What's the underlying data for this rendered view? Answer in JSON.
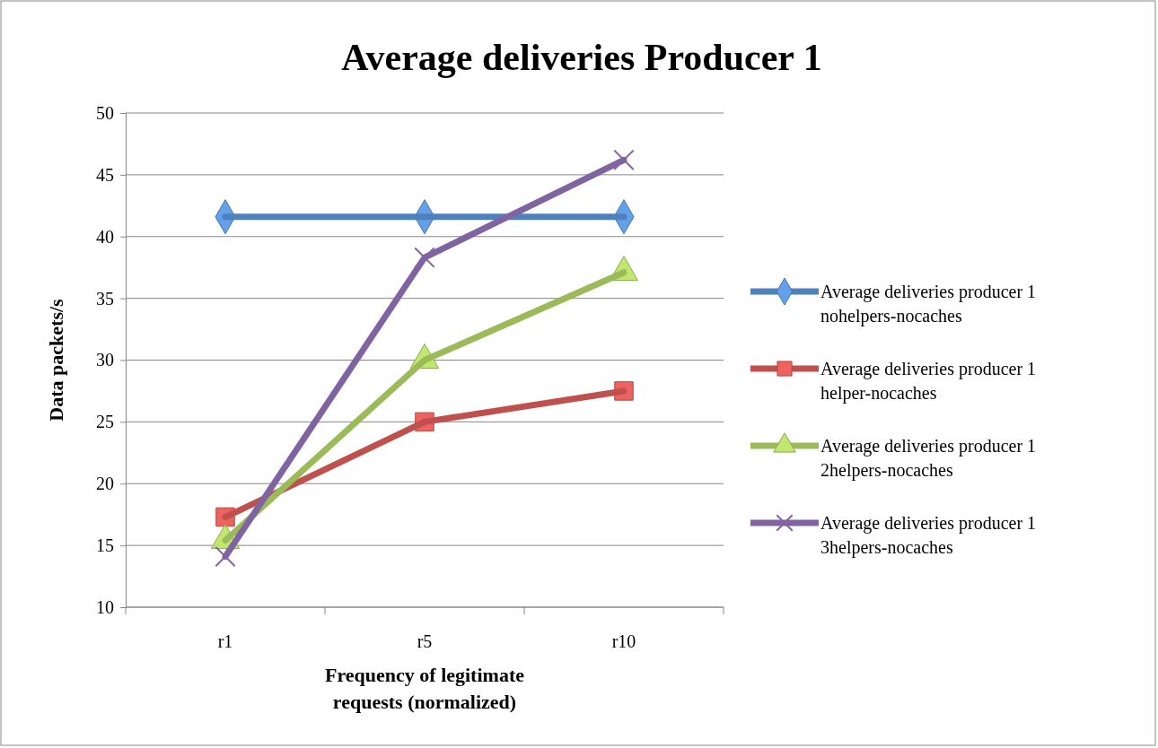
{
  "chart_data": {
    "type": "line",
    "title": "Average deliveries Producer 1",
    "xlabel": "Frequency of legitimate requests (normalized)",
    "ylabel": "Data packets/s",
    "categories": [
      "r1",
      "r5",
      "r10"
    ],
    "series": [
      {
        "name": "Average deliveries producer 1 nohelpers-nocaches",
        "color": "#4f81bd",
        "marker": "diamond",
        "values": [
          41.6,
          41.6,
          41.6
        ]
      },
      {
        "name": "Average deliveries producer 1 helper-nocaches",
        "color": "#c0504d",
        "marker": "square",
        "values": [
          17.3,
          25.0,
          27.5
        ]
      },
      {
        "name": "Average deliveries producer 1 2helpers-nocaches",
        "color": "#9bbb59",
        "marker": "triangle",
        "values": [
          15.4,
          30.0,
          37.1
        ]
      },
      {
        "name": "Average deliveries producer 1 3helpers-nocaches",
        "color": "#8064a2",
        "marker": "cross",
        "values": [
          14.1,
          38.3,
          46.2
        ]
      }
    ],
    "ylim": [
      10,
      50
    ],
    "yticks": [
      10,
      15,
      20,
      25,
      30,
      35,
      40,
      45,
      50
    ],
    "grid": "y",
    "legend": "right",
    "line_style": "solid"
  }
}
